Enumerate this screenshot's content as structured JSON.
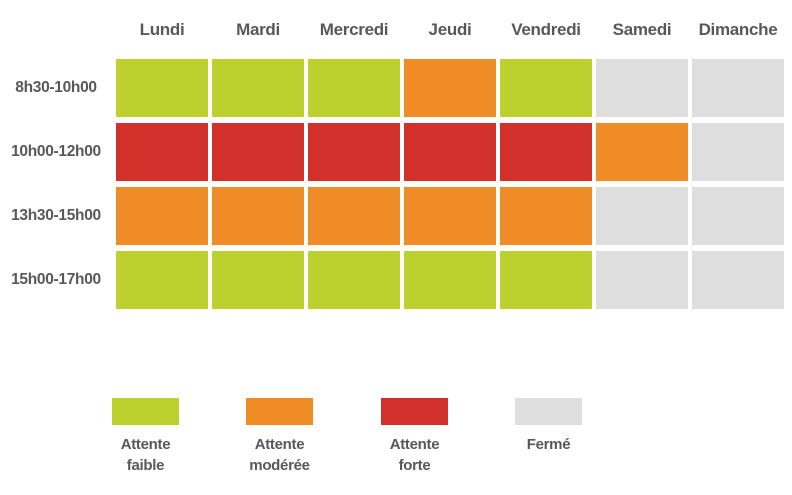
{
  "colors": {
    "low": "#bdd02d",
    "moderate": "#ef8c25",
    "high": "#d2302b",
    "closed": "#dedede",
    "label_text": "#58585a"
  },
  "chart_data": {
    "type": "heatmap",
    "title": "",
    "columns": [
      "Lundi",
      "Mardi",
      "Mercredi",
      "Jeudi",
      "Vendredi",
      "Samedi",
      "Dimanche"
    ],
    "rows": [
      "8h30-10h00",
      "10h00-12h00",
      "13h30-15h00",
      "15h00-17h00"
    ],
    "values": [
      [
        "low",
        "low",
        "low",
        "moderate",
        "low",
        "closed",
        "closed"
      ],
      [
        "high",
        "high",
        "high",
        "high",
        "high",
        "moderate",
        "closed"
      ],
      [
        "moderate",
        "moderate",
        "moderate",
        "moderate",
        "moderate",
        "closed",
        "closed"
      ],
      [
        "low",
        "low",
        "low",
        "low",
        "low",
        "closed",
        "closed"
      ]
    ],
    "value_labels": {
      "low": "Attente faible",
      "moderate": "Attente modérée",
      "high": "Attente forte",
      "closed": "Fermé"
    },
    "legend": [
      {
        "key": "low",
        "label": "Attente\nfaible"
      },
      {
        "key": "moderate",
        "label": "Attente\nmodérée"
      },
      {
        "key": "high",
        "label": "Attente\nforte"
      },
      {
        "key": "closed",
        "label": "Fermé"
      }
    ],
    "legend_position": "bottom",
    "grid": "white-gaps"
  }
}
